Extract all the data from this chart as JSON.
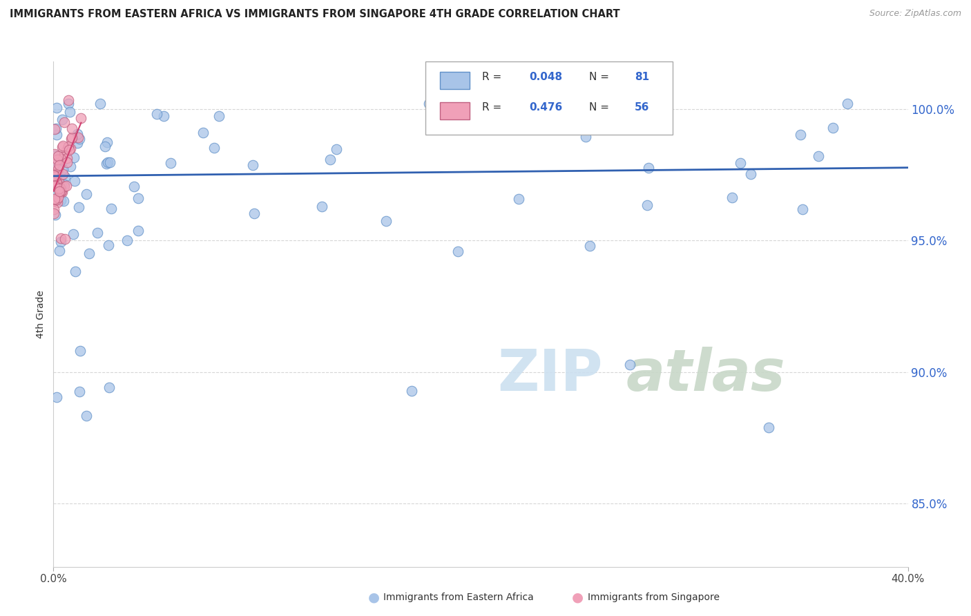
{
  "title": "IMMIGRANTS FROM EASTERN AFRICA VS IMMIGRANTS FROM SINGAPORE 4TH GRADE CORRELATION CHART",
  "source": "Source: ZipAtlas.com",
  "ylabel": "4th Grade",
  "yticks_labels": [
    "100.0%",
    "95.0%",
    "90.0%",
    "85.0%"
  ],
  "ytick_vals": [
    1.0,
    0.95,
    0.9,
    0.85
  ],
  "xlim": [
    0.0,
    0.4
  ],
  "ylim": [
    0.826,
    1.018
  ],
  "legend1_R": "0.048",
  "legend1_N": "81",
  "legend2_R": "0.476",
  "legend2_N": "56",
  "blue_color": "#a8c4e8",
  "pink_color": "#f0a0b8",
  "trend_blue_color": "#3060b0",
  "trend_pink_color": "#d04070",
  "watermark_zip_color": "#cce0f0",
  "watermark_atlas_color": "#c8d8c8",
  "bottom_legend_blue": "Immigrants from Eastern Africa",
  "bottom_legend_pink": "Immigrants from Singapore"
}
